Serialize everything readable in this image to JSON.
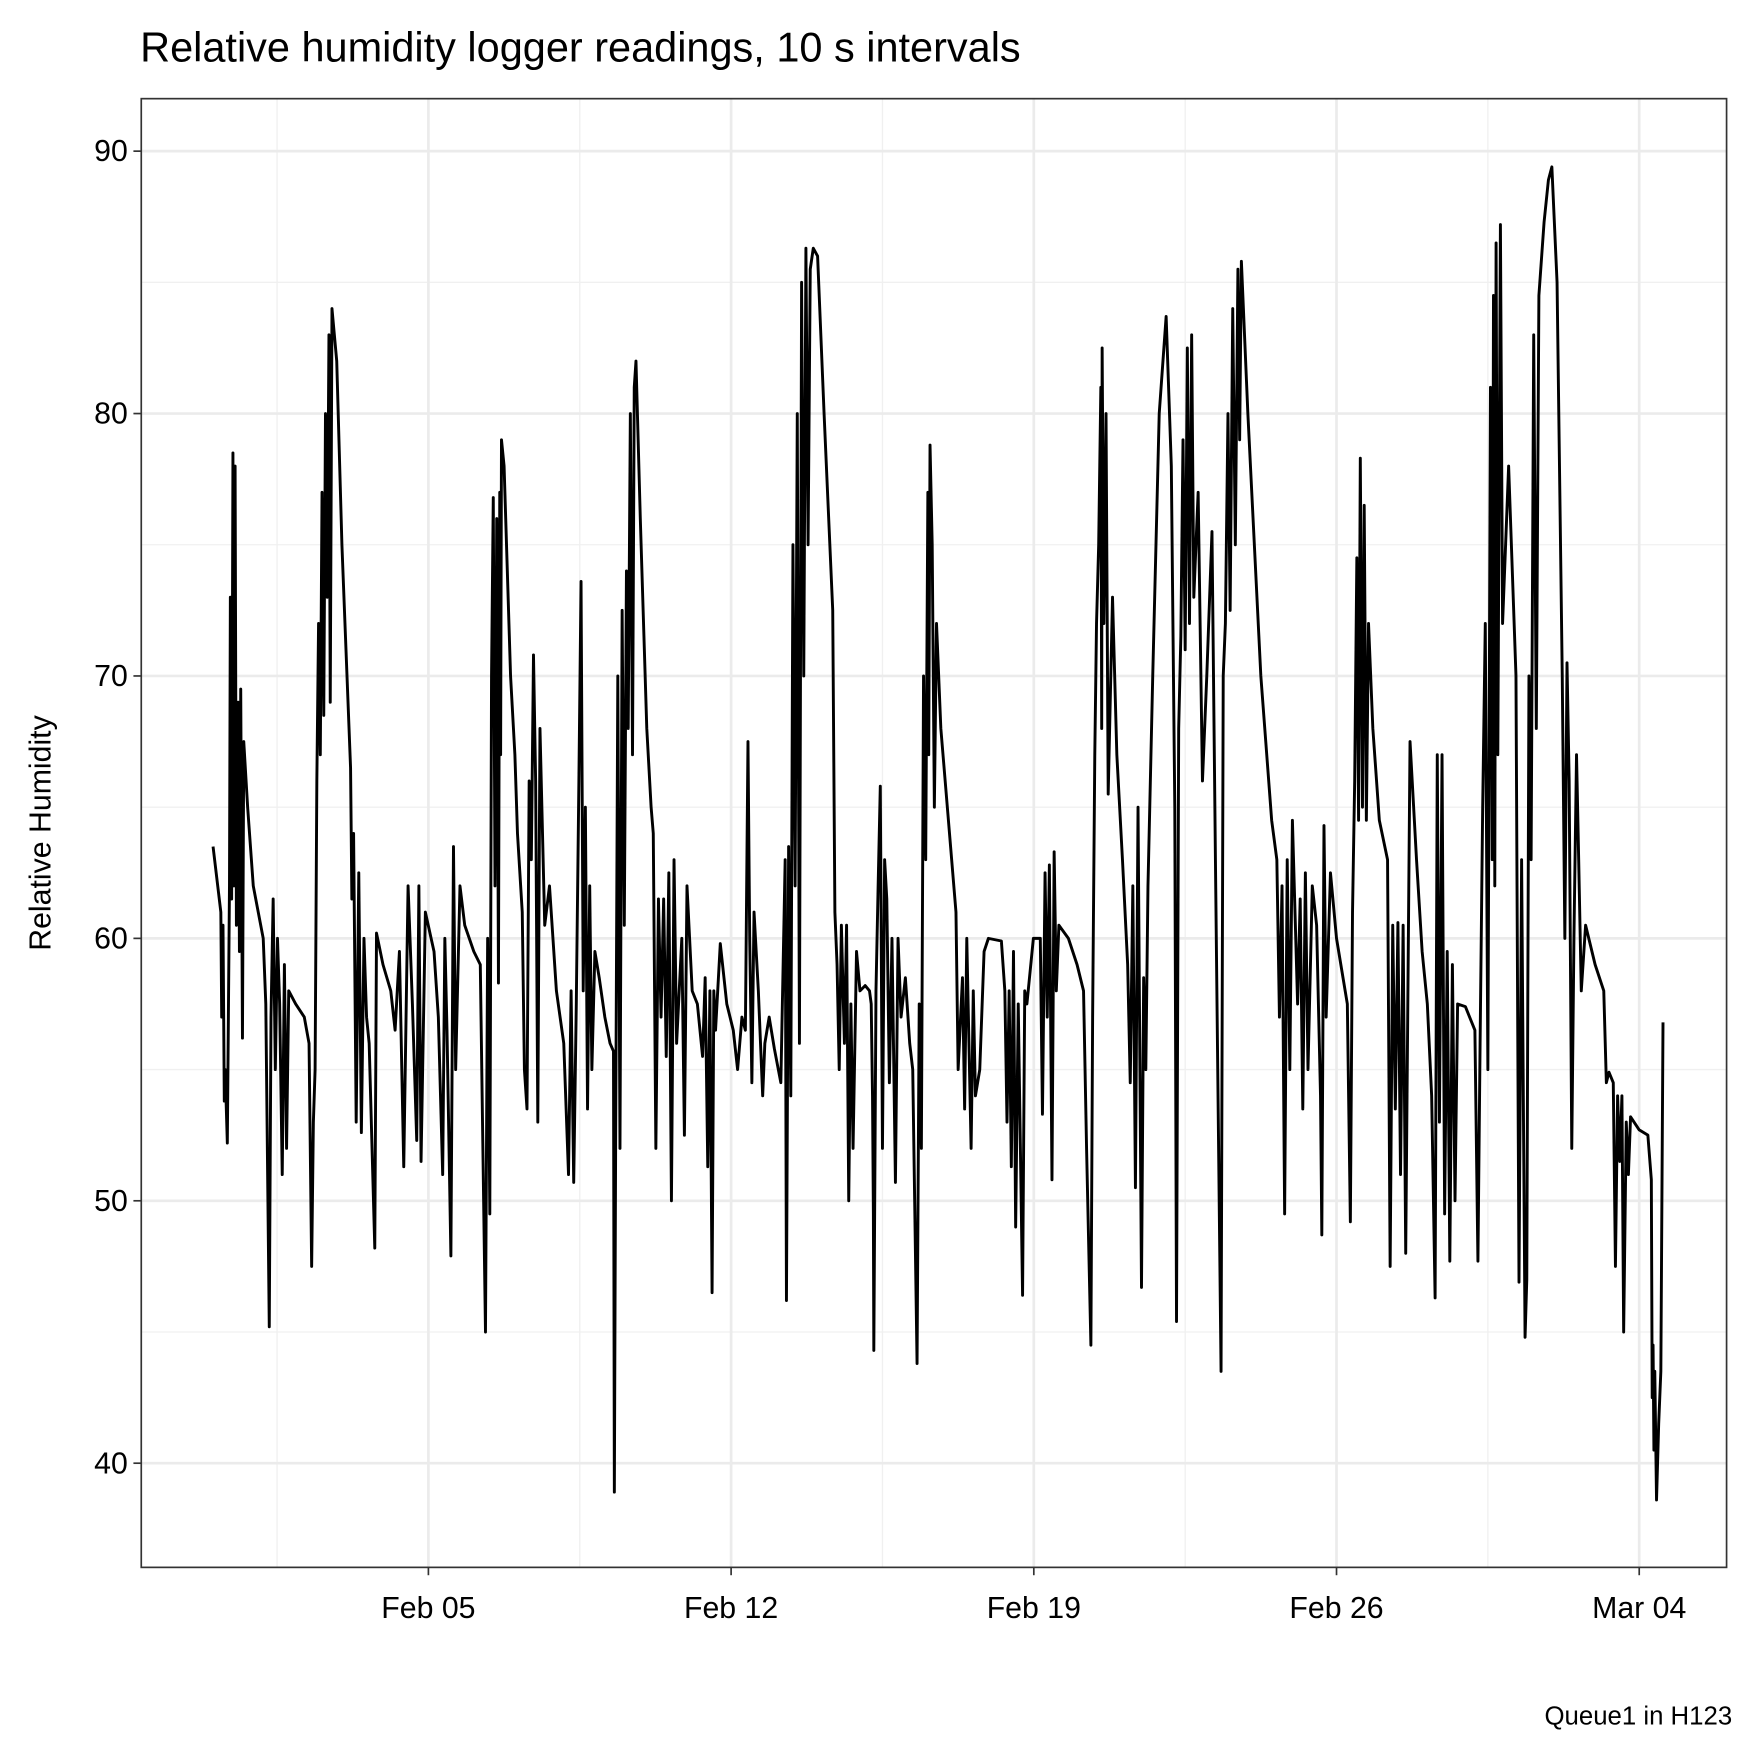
{
  "chart_data": {
    "type": "line",
    "title": "Relative humidity logger readings, 10 s intervals",
    "y_label": "Relative Humidity",
    "caption": "Queue1 in H123",
    "color": "#000000",
    "grid": true,
    "minor_grid": true,
    "xlim": [
      -1.64,
      35.02
    ],
    "ylim": [
      36.03,
      92.0
    ],
    "xticks": [
      {
        "value": 5,
        "label": "Feb 05"
      },
      {
        "value": 12,
        "label": "Feb 12"
      },
      {
        "value": 19,
        "label": "Feb 19"
      },
      {
        "value": 26,
        "label": "Feb 26"
      },
      {
        "value": 33,
        "label": "Mar 04"
      }
    ],
    "yticks": [
      40,
      50,
      60,
      70,
      80,
      90
    ],
    "x": [
      0.02,
      0.2,
      0.22,
      0.25,
      0.28,
      0.3,
      0.35,
      0.4,
      0.42,
      0.45,
      0.48,
      0.5,
      0.53,
      0.56,
      0.6,
      0.63,
      0.66,
      0.7,
      0.73,
      0.82,
      0.95,
      1.18,
      1.24,
      1.32,
      1.36,
      1.41,
      1.46,
      1.51,
      1.56,
      1.62,
      1.67,
      1.72,
      1.77,
      1.93,
      2.13,
      2.24,
      2.3,
      2.34,
      2.38,
      2.42,
      2.46,
      2.5,
      2.54,
      2.58,
      2.62,
      2.66,
      2.7,
      2.73,
      2.77,
      2.88,
      3.0,
      3.2,
      3.23,
      3.27,
      3.33,
      3.39,
      3.45,
      3.51,
      3.57,
      3.63,
      3.76,
      3.8,
      3.95,
      4.13,
      4.23,
      4.33,
      4.43,
      4.53,
      4.63,
      4.73,
      4.78,
      4.83,
      4.93,
      5.13,
      5.23,
      5.33,
      5.38,
      5.43,
      5.52,
      5.58,
      5.63,
      5.73,
      5.84,
      6.05,
      6.2,
      6.32,
      6.37,
      6.42,
      6.46,
      6.5,
      6.54,
      6.58,
      6.62,
      6.65,
      6.67,
      6.69,
      6.75,
      6.9,
      7.0,
      7.06,
      7.17,
      7.22,
      7.28,
      7.33,
      7.38,
      7.43,
      7.48,
      7.53,
      7.58,
      7.69,
      7.8,
      7.96,
      8.13,
      8.24,
      8.3,
      8.36,
      8.42,
      8.48,
      8.53,
      8.58,
      8.63,
      8.68,
      8.73,
      8.78,
      8.85,
      8.95,
      9.08,
      9.2,
      9.28,
      9.3,
      9.33,
      9.38,
      9.43,
      9.48,
      9.53,
      9.58,
      9.62,
      9.67,
      9.72,
      9.76,
      9.8,
      9.9,
      10.05,
      10.15,
      10.2,
      10.26,
      10.32,
      10.38,
      10.44,
      10.5,
      10.56,
      10.62,
      10.68,
      10.74,
      10.86,
      10.92,
      10.98,
      11.1,
      11.22,
      11.34,
      11.4,
      11.46,
      11.51,
      11.56,
      11.6,
      11.64,
      11.75,
      11.9,
      12.05,
      12.15,
      12.25,
      12.33,
      12.39,
      12.43,
      12.48,
      12.53,
      12.63,
      12.73,
      12.78,
      12.88,
      13.0,
      13.15,
      13.25,
      13.28,
      13.33,
      13.38,
      13.43,
      13.48,
      13.53,
      13.58,
      13.63,
      13.68,
      13.73,
      13.78,
      13.83,
      13.9,
      14.0,
      14.15,
      14.35,
      14.4,
      14.45,
      14.5,
      14.55,
      14.62,
      14.67,
      14.72,
      14.77,
      14.82,
      14.9,
      14.98,
      15.1,
      15.2,
      15.24,
      15.27,
      15.29,
      15.3,
      15.35,
      15.4,
      15.45,
      15.5,
      15.55,
      15.6,
      15.66,
      15.72,
      15.8,
      15.86,
      15.93,
      16.03,
      16.13,
      16.2,
      16.3,
      16.35,
      16.4,
      16.45,
      16.5,
      16.55,
      16.57,
      16.6,
      16.65,
      16.7,
      16.75,
      16.85,
      17.05,
      17.2,
      17.25,
      17.35,
      17.4,
      17.45,
      17.55,
      17.6,
      17.65,
      17.75,
      17.85,
      17.95,
      18.25,
      18.33,
      18.38,
      18.43,
      18.48,
      18.53,
      18.58,
      18.64,
      18.74,
      18.79,
      18.84,
      18.99,
      19.15,
      19.2,
      19.26,
      19.31,
      19.36,
      19.42,
      19.47,
      19.52,
      19.58,
      19.8,
      20.0,
      20.15,
      20.22,
      20.32,
      20.36,
      20.41,
      20.45,
      20.5,
      20.55,
      20.57,
      20.58,
      20.62,
      20.67,
      20.72,
      20.82,
      20.92,
      21.05,
      21.17,
      21.23,
      21.29,
      21.35,
      21.41,
      21.49,
      21.54,
      21.59,
      21.64,
      21.75,
      21.9,
      22.06,
      22.18,
      22.26,
      22.3,
      22.35,
      22.4,
      22.45,
      22.5,
      22.55,
      22.6,
      22.65,
      22.7,
      22.8,
      22.9,
      23.0,
      23.12,
      23.2,
      23.33,
      23.38,
      23.43,
      23.49,
      23.54,
      23.6,
      23.66,
      23.72,
      23.76,
      23.8,
      23.95,
      24.25,
      24.5,
      24.62,
      24.68,
      24.74,
      24.8,
      24.86,
      24.92,
      24.98,
      25.1,
      25.16,
      25.22,
      25.28,
      25.34,
      25.44,
      25.54,
      25.63,
      25.66,
      25.71,
      25.76,
      25.86,
      26.0,
      26.15,
      26.25,
      26.32,
      26.37,
      26.42,
      26.47,
      26.51,
      26.55,
      26.6,
      26.64,
      26.69,
      26.74,
      26.84,
      26.99,
      27.18,
      27.24,
      27.3,
      27.36,
      27.42,
      27.48,
      27.54,
      27.6,
      27.7,
      27.85,
      27.98,
      28.1,
      28.2,
      28.28,
      28.33,
      28.38,
      28.44,
      28.5,
      28.56,
      28.62,
      28.68,
      28.74,
      28.8,
      28.98,
      29.2,
      29.27,
      29.32,
      29.38,
      29.44,
      29.5,
      29.56,
      29.6,
      29.63,
      29.66,
      29.69,
      29.73,
      29.79,
      29.84,
      29.98,
      30.15,
      30.22,
      30.28,
      30.36,
      30.4,
      30.45,
      30.5,
      30.56,
      30.62,
      30.68,
      30.8,
      30.9,
      30.98,
      31.1,
      31.22,
      31.28,
      31.33,
      31.38,
      31.44,
      31.49,
      31.55,
      31.6,
      31.66,
      31.76,
      31.98,
      32.18,
      32.24,
      32.3,
      32.4,
      32.45,
      32.5,
      32.55,
      32.6,
      32.64,
      32.7,
      32.75,
      32.8,
      33.0,
      33.2,
      33.28,
      33.3,
      33.32,
      33.34,
      33.36,
      33.4,
      33.45,
      33.5,
      33.55
    ],
    "values": [
      63.5,
      61,
      57,
      60.5,
      53.8,
      55,
      52.2,
      62,
      73,
      61.5,
      78.5,
      62,
      78,
      60.5,
      69,
      59.5,
      69.5,
      56.2,
      67.5,
      65,
      62,
      60,
      57.5,
      45.2,
      57,
      61.5,
      55,
      60,
      57.5,
      51,
      59,
      52,
      58,
      57.5,
      57,
      56,
      47.5,
      53,
      55,
      66,
      72,
      67,
      77,
      68.5,
      80,
      73,
      83,
      69,
      84,
      82,
      75,
      66.5,
      61.5,
      64,
      53,
      62.5,
      52.6,
      60,
      57,
      56,
      48.2,
      60.2,
      59,
      58,
      56.5,
      59.5,
      51.3,
      62,
      57.5,
      52.3,
      62,
      51.5,
      61,
      59.5,
      57,
      51,
      60,
      56.5,
      47.9,
      63.5,
      55,
      62,
      60.5,
      59.5,
      59,
      45,
      60,
      49.5,
      70,
      76.8,
      62,
      76,
      58.3,
      77,
      67,
      79,
      78,
      70,
      67,
      64,
      61,
      55,
      53.5,
      66,
      63,
      70.8,
      66,
      53,
      68,
      60.5,
      62,
      58,
      56,
      51,
      58,
      50.7,
      57.5,
      66,
      73.6,
      58,
      65,
      53.5,
      62,
      55,
      59.5,
      58.5,
      57,
      56,
      55.7,
      38.9,
      52.3,
      70,
      52,
      72.5,
      60.5,
      74,
      68,
      80,
      67,
      81,
      82,
      76,
      68,
      65,
      64,
      52,
      61.5,
      57,
      61.5,
      55.5,
      62.5,
      50,
      63,
      56,
      60,
      52.5,
      62,
      58,
      57.5,
      55.5,
      58.5,
      51.3,
      58,
      46.5,
      58,
      56.5,
      59.8,
      57.5,
      56.5,
      55,
      57,
      56.5,
      67.5,
      60,
      54.5,
      61,
      58,
      54,
      56,
      57,
      55.8,
      54.5,
      63,
      46.2,
      63.5,
      54,
      75,
      62,
      80,
      56,
      85,
      70,
      86.3,
      75,
      85.5,
      86.3,
      86,
      80,
      72.5,
      61,
      59,
      55,
      60.5,
      56,
      60.5,
      50,
      57.5,
      52,
      59.5,
      58,
      58.2,
      58,
      57.5,
      54,
      49.5,
      44.3,
      58,
      62,
      65.8,
      52,
      63,
      61.5,
      54.5,
      60,
      50.7,
      60,
      57,
      58.5,
      56,
      55,
      43.8,
      57.5,
      52,
      70,
      63,
      77,
      67,
      78.8,
      75,
      65,
      72,
      68,
      64,
      61,
      55,
      58.5,
      53.5,
      60,
      52,
      58,
      54,
      55,
      59.5,
      60,
      59.9,
      58,
      53,
      58,
      51.3,
      59.5,
      49,
      57.5,
      46.4,
      58,
      57.5,
      60,
      60,
      53.3,
      62.5,
      57,
      62.8,
      50.8,
      63.3,
      58,
      60.5,
      60,
      59,
      58,
      52,
      44.5,
      57,
      67,
      72,
      75,
      81,
      68,
      82.5,
      72,
      80,
      65.5,
      73,
      67,
      63,
      59,
      54.5,
      62,
      50.5,
      65,
      46.7,
      58.5,
      55,
      62,
      70,
      80,
      83.7,
      78,
      65,
      45.4,
      68,
      71.5,
      79,
      71,
      82.5,
      72,
      83,
      73,
      77,
      66,
      70,
      75.5,
      63,
      43.5,
      70,
      72,
      80,
      72.5,
      84,
      75,
      85.5,
      79,
      85.8,
      80,
      70,
      64.5,
      63,
      57,
      62,
      49.5,
      63,
      55,
      64.5,
      57.5,
      61.5,
      53.5,
      62.5,
      55,
      62,
      60.5,
      54,
      48.7,
      64.3,
      57,
      62.5,
      60,
      58.5,
      57.5,
      49.2,
      61,
      66,
      74.5,
      64.5,
      78.3,
      65,
      76.5,
      64.5,
      72,
      68,
      64.5,
      63,
      47.5,
      60.5,
      53.5,
      60.6,
      51,
      60.5,
      48,
      67.5,
      63,
      59.5,
      57.5,
      54,
      46.3,
      67,
      53,
      67,
      49.5,
      59.5,
      47.7,
      59,
      50,
      57.5,
      57.4,
      56.5,
      47.7,
      56,
      65,
      72,
      55,
      81,
      63,
      84.5,
      62,
      86.5,
      67,
      87.2,
      72,
      78,
      70,
      46.9,
      63,
      44.8,
      47,
      70,
      63,
      83,
      68,
      84.5,
      87.3,
      88.9,
      89.4,
      85,
      70,
      60,
      70.5,
      66,
      52,
      60,
      67,
      63,
      58,
      60.5,
      59,
      58,
      54.5,
      54.9,
      54.5,
      47.5,
      54,
      51.5,
      54,
      45,
      53,
      51,
      53.2,
      52.7,
      52.5,
      50.8,
      42.5,
      44.5,
      40.5,
      43.5,
      38.6,
      41.5,
      43.5,
      56.8
    ]
  }
}
